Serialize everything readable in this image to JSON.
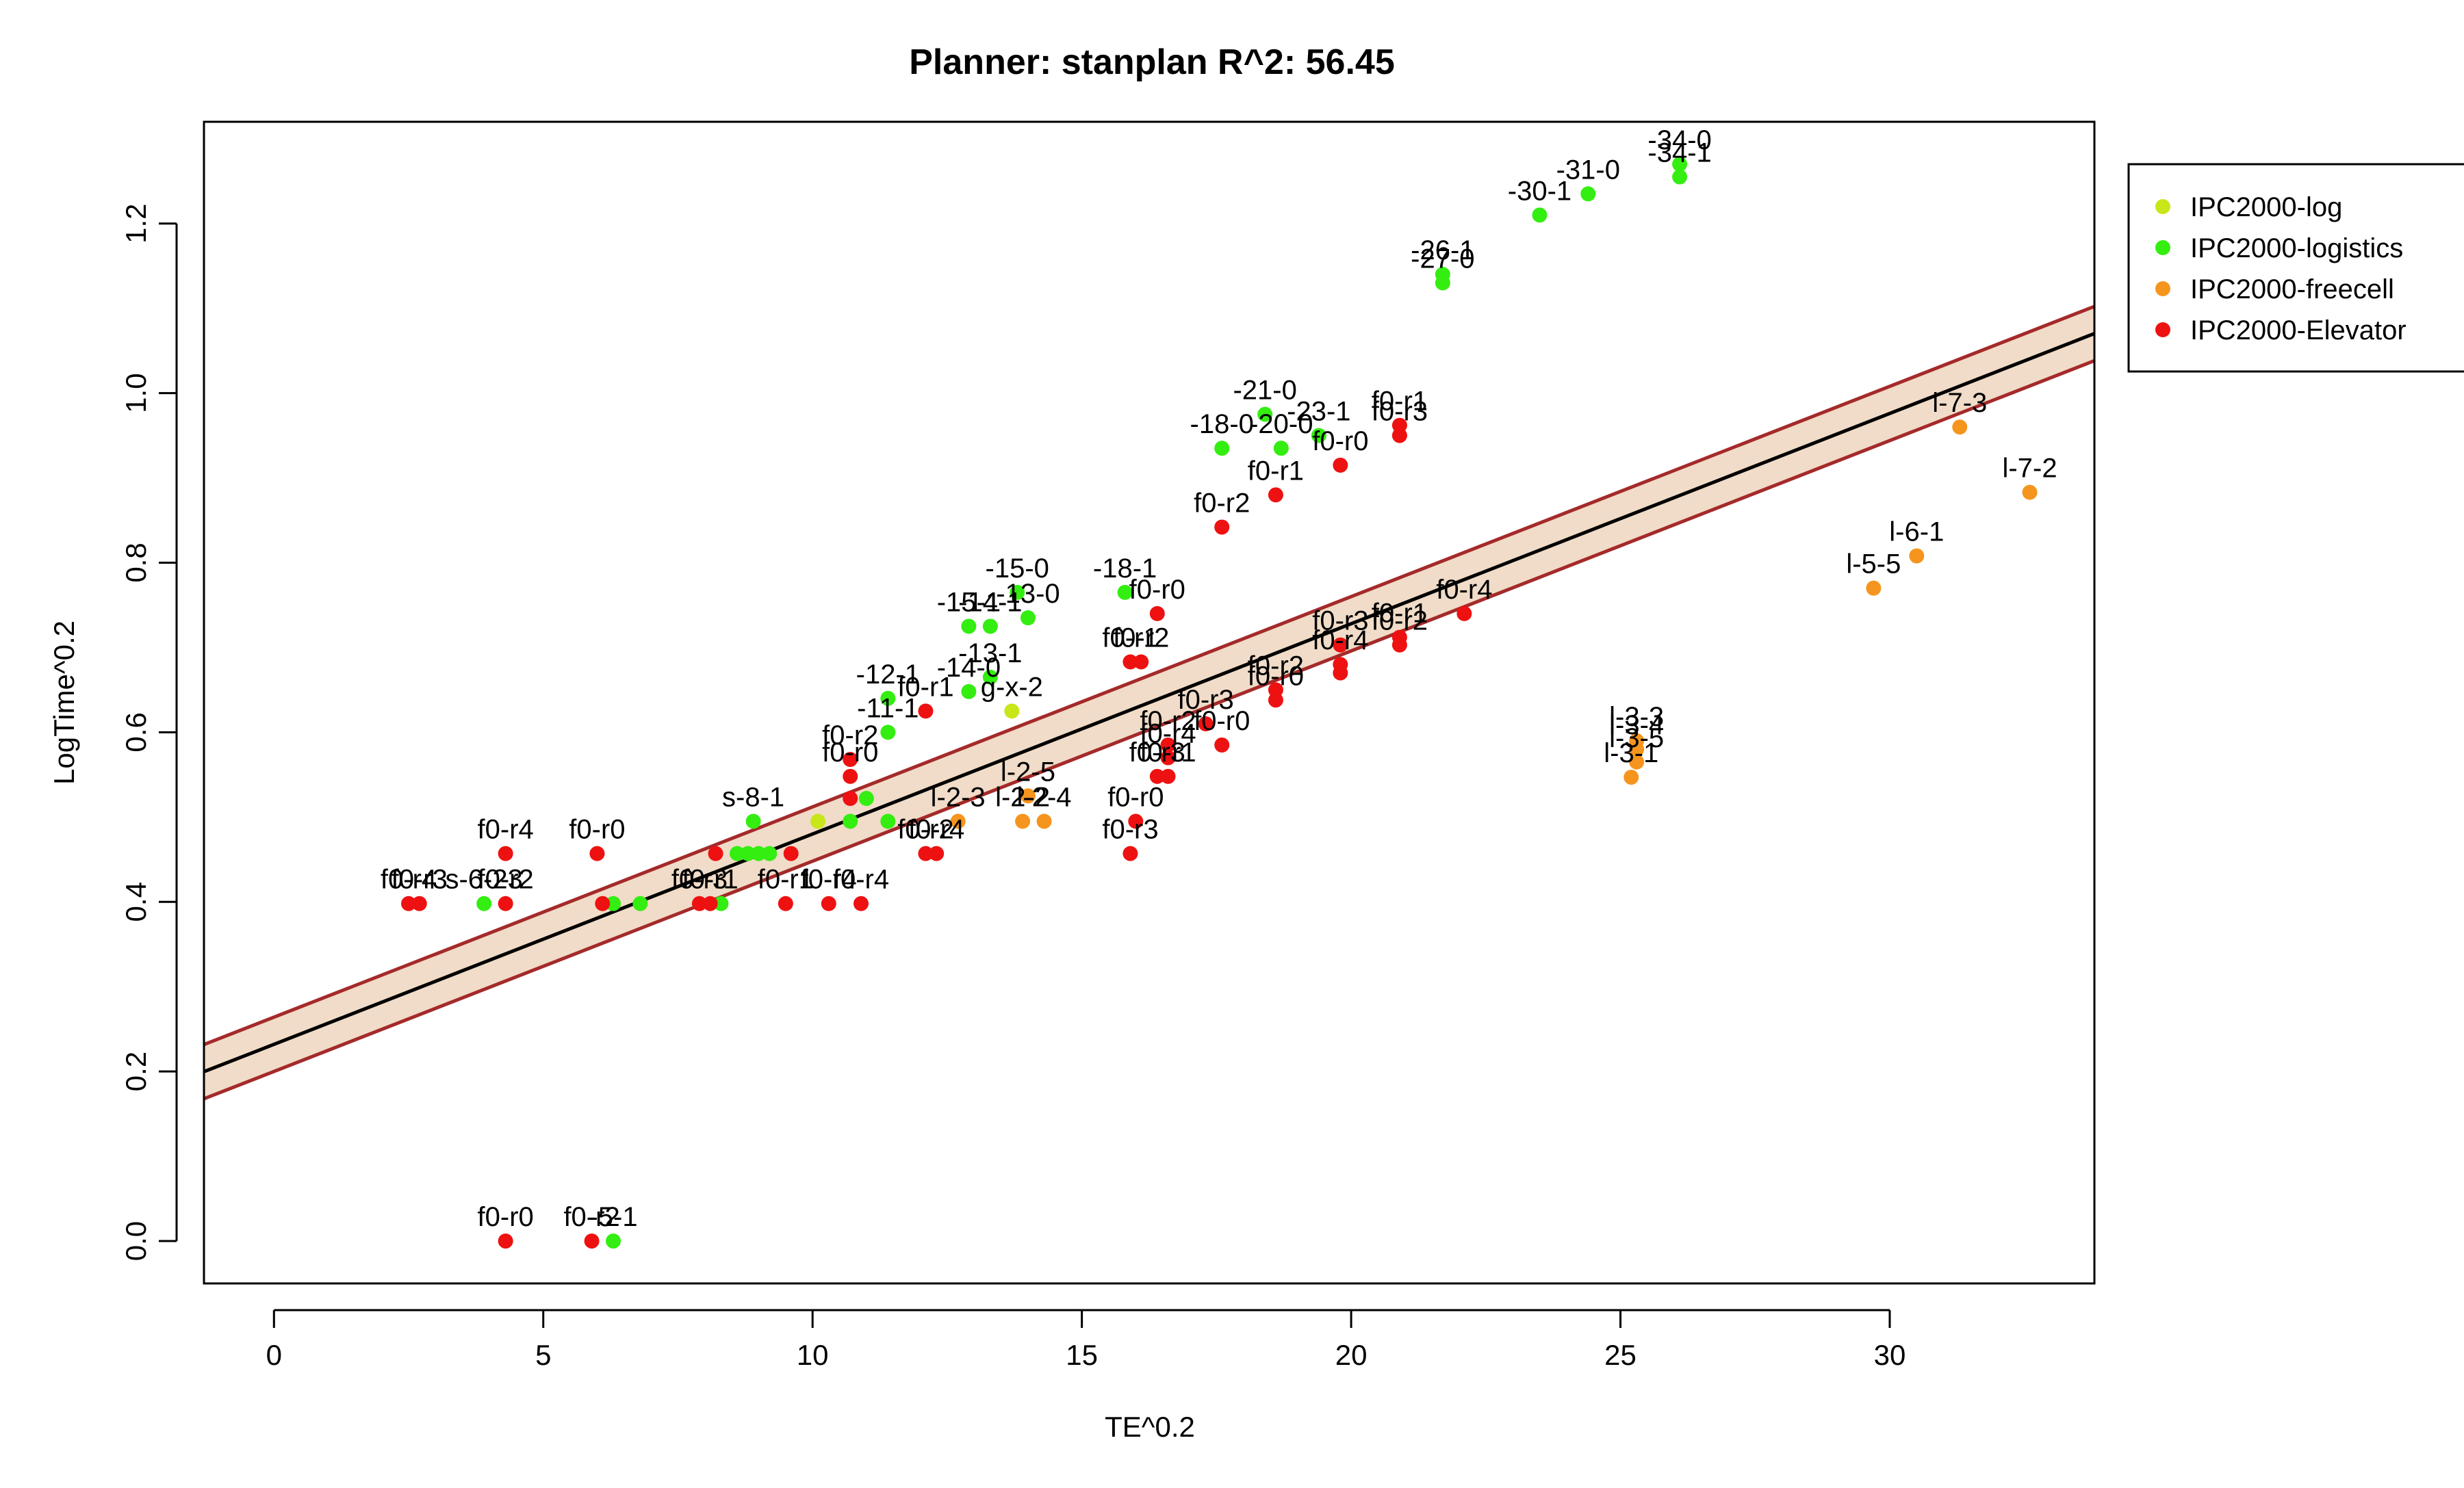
{
  "chart_data": {
    "type": "scatter",
    "title": "Planner: stanplan R^2: 56.45",
    "xlabel": "TE^0.2",
    "ylabel": "LogTime^0.2",
    "xlim": [
      -1.3,
      33.8
    ],
    "ylim": [
      -0.05,
      1.32
    ],
    "xticks": [
      0,
      5,
      10,
      15,
      20,
      25,
      30
    ],
    "yticks": [
      0.0,
      0.2,
      0.4,
      0.6,
      0.8,
      1.0,
      1.2
    ],
    "xtick_labels": [
      "0",
      "5",
      "10",
      "15",
      "20",
      "25",
      "30"
    ],
    "ytick_labels": [
      "0.0",
      "0.2",
      "0.4",
      "0.6",
      "0.8",
      "1.0",
      "1.2"
    ],
    "grid": false,
    "legend_position": "top-right outside",
    "colors": {
      "IPC2000-log": "#c8e619",
      "IPC2000-logistics": "#33ee10",
      "IPC2000-freecell": "#f5951e",
      "IPC2000-Elevator": "#ee1111",
      "fit_line": "#000000",
      "band_fill": "#f0dcc8",
      "band_edge": "#a52a2a"
    },
    "fit": {
      "intercept": 0.232,
      "slope": 0.0248,
      "band_halfwidth": 0.032
    },
    "series": [
      {
        "name": "IPC2000-log",
        "points": [
          {
            "x": 13.7,
            "y": 0.625,
            "label": "g-x-2"
          },
          {
            "x": 10.1,
            "y": 0.495,
            "label": ""
          }
        ]
      },
      {
        "name": "IPC2000-logistics",
        "points": [
          {
            "x": 26.1,
            "y": 1.255,
            "label": "-34-1"
          },
          {
            "x": 26.1,
            "y": 1.27,
            "label": "-34-0"
          },
          {
            "x": 24.4,
            "y": 1.235,
            "label": "-31-0"
          },
          {
            "x": 23.5,
            "y": 1.21,
            "label": "-30-1"
          },
          {
            "x": 21.7,
            "y": 1.14,
            "label": "-26-1"
          },
          {
            "x": 21.7,
            "y": 1.13,
            "label": "-27-0"
          },
          {
            "x": 18.4,
            "y": 0.975,
            "label": "-21-0"
          },
          {
            "x": 19.4,
            "y": 0.95,
            "label": "-23-1"
          },
          {
            "x": 17.6,
            "y": 0.935,
            "label": "-18-0"
          },
          {
            "x": 18.7,
            "y": 0.935,
            "label": "-20-0"
          },
          {
            "x": 15.8,
            "y": 0.765,
            "label": "-18-1"
          },
          {
            "x": 13.8,
            "y": 0.765,
            "label": "-15-0"
          },
          {
            "x": 14.0,
            "y": 0.735,
            "label": "-13-0"
          },
          {
            "x": 12.9,
            "y": 0.725,
            "label": "-15-1"
          },
          {
            "x": 13.3,
            "y": 0.725,
            "label": "-14-1"
          },
          {
            "x": 13.3,
            "y": 0.665,
            "label": "-13-1"
          },
          {
            "x": 12.9,
            "y": 0.648,
            "label": "-14-0"
          },
          {
            "x": 11.4,
            "y": 0.64,
            "label": "-12-1"
          },
          {
            "x": 11.4,
            "y": 0.6,
            "label": "-11-1"
          },
          {
            "x": 8.9,
            "y": 0.495,
            "label": "s-8-1"
          },
          {
            "x": 11.0,
            "y": 0.522,
            "label": ""
          },
          {
            "x": 10.7,
            "y": 0.495,
            "label": ""
          },
          {
            "x": 11.4,
            "y": 0.495,
            "label": ""
          },
          {
            "x": 8.6,
            "y": 0.457,
            "label": ""
          },
          {
            "x": 8.8,
            "y": 0.457,
            "label": ""
          },
          {
            "x": 9.0,
            "y": 0.457,
            "label": ""
          },
          {
            "x": 9.2,
            "y": 0.457,
            "label": ""
          },
          {
            "x": 8.3,
            "y": 0.398,
            "label": ""
          },
          {
            "x": 6.8,
            "y": 0.398,
            "label": ""
          },
          {
            "x": 6.3,
            "y": 0.398,
            "label": ""
          },
          {
            "x": 3.9,
            "y": 0.398,
            "label": "s-6-23"
          },
          {
            "x": 6.3,
            "y": 0.0,
            "label": "-5-1"
          }
        ]
      },
      {
        "name": "IPC2000-freecell",
        "points": [
          {
            "x": 32.6,
            "y": 0.883,
            "label": "l-7-2"
          },
          {
            "x": 31.3,
            "y": 0.96,
            "label": "l-7-3"
          },
          {
            "x": 30.5,
            "y": 0.808,
            "label": "l-6-1"
          },
          {
            "x": 29.7,
            "y": 0.77,
            "label": "l-5-5"
          },
          {
            "x": 25.3,
            "y": 0.59,
            "label": "l-3-3"
          },
          {
            "x": 25.3,
            "y": 0.58,
            "label": "l-3-4"
          },
          {
            "x": 25.3,
            "y": 0.565,
            "label": "l-3-5"
          },
          {
            "x": 25.2,
            "y": 0.547,
            "label": "l-3-1"
          },
          {
            "x": 14.0,
            "y": 0.525,
            "label": "l-2-5"
          },
          {
            "x": 13.9,
            "y": 0.495,
            "label": "l-2-2"
          },
          {
            "x": 14.3,
            "y": 0.495,
            "label": "l-2-4"
          },
          {
            "x": 12.7,
            "y": 0.495,
            "label": "l-2-3"
          }
        ]
      },
      {
        "name": "IPC2000-Elevator",
        "points": [
          {
            "x": 20.9,
            "y": 0.962,
            "label": "f0-r1"
          },
          {
            "x": 20.9,
            "y": 0.95,
            "label": "f0-r3"
          },
          {
            "x": 19.8,
            "y": 0.915,
            "label": "f0-r0"
          },
          {
            "x": 18.6,
            "y": 0.88,
            "label": "f0-r1"
          },
          {
            "x": 17.6,
            "y": 0.842,
            "label": "f0-r2"
          },
          {
            "x": 16.4,
            "y": 0.74,
            "label": "f0-r0"
          },
          {
            "x": 15.9,
            "y": 0.683,
            "label": "f0-r1"
          },
          {
            "x": 16.1,
            "y": 0.683,
            "label": "f0-r2"
          },
          {
            "x": 22.1,
            "y": 0.74,
            "label": "f0-r4"
          },
          {
            "x": 20.9,
            "y": 0.712,
            "label": "f0-r1"
          },
          {
            "x": 20.9,
            "y": 0.703,
            "label": "f0-r2"
          },
          {
            "x": 19.8,
            "y": 0.703,
            "label": "f0-r3"
          },
          {
            "x": 19.8,
            "y": 0.68,
            "label": "f0-r4"
          },
          {
            "x": 19.8,
            "y": 0.67,
            "label": ""
          },
          {
            "x": 18.6,
            "y": 0.65,
            "label": "f0-r2"
          },
          {
            "x": 18.6,
            "y": 0.638,
            "label": "f0-r0"
          },
          {
            "x": 17.3,
            "y": 0.61,
            "label": "f0-r3"
          },
          {
            "x": 17.6,
            "y": 0.585,
            "label": "f0-r0"
          },
          {
            "x": 16.6,
            "y": 0.585,
            "label": "f0-r2"
          },
          {
            "x": 16.6,
            "y": 0.57,
            "label": "f0-r4"
          },
          {
            "x": 16.4,
            "y": 0.548,
            "label": "f0-r3"
          },
          {
            "x": 16.6,
            "y": 0.548,
            "label": "f0-r1"
          },
          {
            "x": 16.0,
            "y": 0.495,
            "label": "f0-r0"
          },
          {
            "x": 15.9,
            "y": 0.457,
            "label": "f0-r3"
          },
          {
            "x": 12.1,
            "y": 0.625,
            "label": "f0-r1"
          },
          {
            "x": 10.7,
            "y": 0.568,
            "label": "f0-r2"
          },
          {
            "x": 10.7,
            "y": 0.548,
            "label": "f0-r0"
          },
          {
            "x": 10.7,
            "y": 0.522,
            "label": ""
          },
          {
            "x": 12.1,
            "y": 0.457,
            "label": "f0-r2"
          },
          {
            "x": 12.3,
            "y": 0.457,
            "label": "f0-r4"
          },
          {
            "x": 9.6,
            "y": 0.457,
            "label": ""
          },
          {
            "x": 8.2,
            "y": 0.457,
            "label": ""
          },
          {
            "x": 6.0,
            "y": 0.457,
            "label": "f0-r0"
          },
          {
            "x": 4.3,
            "y": 0.457,
            "label": "f0-r4"
          },
          {
            "x": 7.9,
            "y": 0.398,
            "label": "f0-r3"
          },
          {
            "x": 8.1,
            "y": 0.398,
            "label": "f0-r1"
          },
          {
            "x": 9.5,
            "y": 0.398,
            "label": "f0-r1"
          },
          {
            "x": 10.3,
            "y": 0.398,
            "label": "f0-r4"
          },
          {
            "x": 10.9,
            "y": 0.398,
            "label": "f0-r4"
          },
          {
            "x": 6.1,
            "y": 0.398,
            "label": ""
          },
          {
            "x": 4.3,
            "y": 0.398,
            "label": "f0-r2"
          },
          {
            "x": 2.5,
            "y": 0.398,
            "label": "f0-r4"
          },
          {
            "x": 2.7,
            "y": 0.398,
            "label": "f0-r3"
          },
          {
            "x": 4.3,
            "y": 0.0,
            "label": "f0-r0"
          },
          {
            "x": 5.9,
            "y": 0.0,
            "label": "f0-r2"
          }
        ]
      }
    ]
  }
}
